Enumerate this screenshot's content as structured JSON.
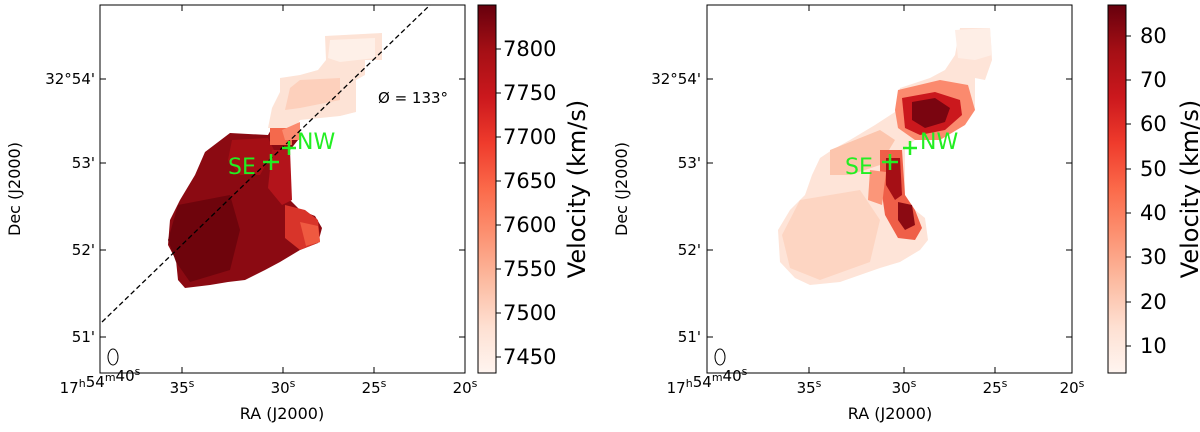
{
  "panels": [
    {
      "map": "mean-velocity",
      "position_angle_label": "Ø = 133°",
      "source_labels": {
        "southeast": "SE",
        "northwest": "NW"
      },
      "xlabel": "RA (J2000)",
      "ylabel": "Dec (J2000)",
      "ra_ticks": [
        "17h54m40s",
        "35s",
        "30s",
        "25s",
        "20s"
      ],
      "dec_ticks": [
        "51'",
        "52'",
        "53'",
        "32°54'"
      ],
      "colorbar": {
        "label": "Velocity (km/s)",
        "ticks": [
          "7450",
          "7500",
          "7550",
          "7600",
          "7650",
          "7700",
          "7750",
          "7800"
        ],
        "range": [
          7428,
          7845
        ]
      }
    },
    {
      "map": "velocity-dispersion",
      "source_labels": {
        "southeast": "SE",
        "northwest": "NW"
      },
      "xlabel": "RA (J2000)",
      "ylabel": "Dec (J2000)",
      "ra_ticks": [
        "17h54m40s",
        "35s",
        "30s",
        "25s",
        "20s"
      ],
      "dec_ticks": [
        "51'",
        "52'",
        "53'",
        "32°54'"
      ],
      "colorbar": {
        "label": "Velocity (km/s)",
        "ticks": [
          "10",
          "20",
          "30",
          "40",
          "50",
          "60",
          "70",
          "80"
        ],
        "range": [
          3,
          86
        ]
      }
    }
  ],
  "colors": {
    "colormap": "Reds",
    "marker": "#22ee22"
  }
}
